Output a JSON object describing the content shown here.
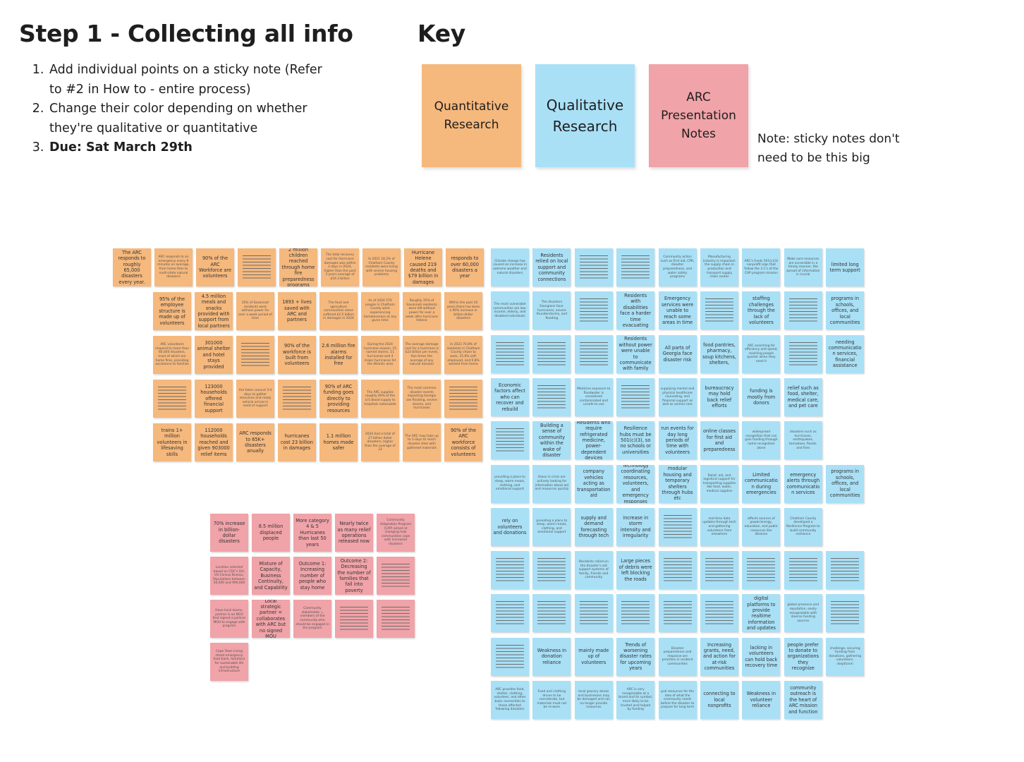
{
  "title": "Step 1 - Collecting all info",
  "key_title": "Key",
  "steps": [
    {
      "text": "Add individual points on a sticky note (Refer to #2 in How to - entire process)",
      "bold": false
    },
    {
      "text": "Change their color depending on whether they're qualitative or quantitative",
      "bold": false
    },
    {
      "text": "Due: Sat March 29th",
      "bold": true
    }
  ],
  "key": {
    "quantitative": "Quantitative Research",
    "qualitative": "Qualitative Research",
    "arc": "ARC Presentation Notes"
  },
  "note": "Note: sticky notes don't need to be this big",
  "colors": {
    "quantitative": "#f5b87d",
    "qualitative": "#a9e0f6",
    "arc": "#f0a3a8"
  },
  "quantitative_notes": [
    [
      "The ARC responds to roughly 65,000 disasters every year.",
      "ARC responds to an emergency every 8 minutes on average, from home fires to multi-state natural disasters",
      "90% of the ARC Workforce are volunteers",
      "",
      "2 million children reached through home fire preparedness programs",
      "The total recovery cost for Hurricane damages was within 3 days in 2024, higher than the past 3 years average of $19.3 billion",
      "In 2021 18.2% of Chatham County residents were living with severe housing problems",
      "Hurricane Helene caused 219 deaths and $79 billion in damages",
      "responds to over 60,000 disasters a year"
    ],
    [
      "95% of the employee structure is made up of volunteers",
      "4.5 million meals and snacks provided with support from local partners",
      "35% of Savannah residents were without power for over a week period of time",
      "1893 + lives saved with ARC and partners",
      "The food and agriculture communities alone suffered $2.5 billion in damages in 2024",
      "As of 2024 570 people in Chatham County were experiencing homelessness at any given time",
      "Roughly 35% of Savannah residents were left without power for over a week after hurricane Helene",
      "Within the past 10 years there has been a 90% increase in billion-dollar disasters"
    ],
    [
      "ARC volunteers respond to more than 60,000 disasters, most of which are home fires, providing assistance to families",
      "301000 animal shelter and hotel stays provided",
      "",
      "90% of the workforce is built from volunteers",
      "2.6 million fire alarms installed for free",
      "During the 2024 hurricane season, 15 named storms, 11 hurricanes and 4 major hurricanes hit the Atlantic area",
      "The average damage cost for a hurricane is $23 billion per event, five times the average of any natural disaster",
      "In 2023 70.8% of residents in Chatham County chose to work, 15.6% self-employed, and 0.8% worked from home"
    ],
    [
      "",
      "123000 households offered financial support",
      "Are taken around 3-4 days to gather resources and ready vehicle arrival in need of support",
      "",
      "90% of ARC funding goes directly to providing resources",
      "The ARC supplies roughly 40% of the U.S blood supply to hospitals nationwide",
      "The most common disaster events impacting Georgia are flooding, severe storms, and hurricanes",
      ""
    ],
    [
      "trains 1+ million volunteers in lifesaving skills",
      "112000 households reached and given 903000 relief items",
      "ARC responds to 65K+ disasters anually",
      "hurricanes cost 23 billion in damages",
      "1.1 million homes made safer",
      "2024 had a total of 27 billion dollar disasters, higher than the average of 23",
      "The ARC may take up to 3 days to reach disaster sites with gathered materials",
      "90% of the ARC workforce consists of volunteers"
    ]
  ],
  "qualitative_notes": [
    [
      "Climate change has caused an increase in extreme weather and natural disasters",
      "Residents relied on local support and community connections",
      "",
      "",
      "Community action such as first aid, CPR, disaster preparedness, and water safety programs",
      "Manufacturing industry is impacted: the supply chain in production and transport supply chain routes",
      "ARC's funds 501(c)(3) nonprofit orgs that follow the 3 C's of the CAP program mission",
      "Make sure resources are accessible in a timely manner, the spread of information is crucial",
      "limited long term support"
    ],
    [
      "The most vulnerable communities are low-income, elderly, and disabled individuals",
      "The disasters Georgians face: hurricanes, severe thunderstorms, and flooding",
      "",
      "Residents with disabilities face a harder time evacuating",
      "Emergency services were unable to reach some areas in time",
      "",
      "staffing challenges through the lack of volunteers",
      "",
      "programs in schools, offices, and local communities"
    ],
    [
      "",
      "",
      "",
      "Residents without power were unable to communicate with family",
      "All parts of Georgia face disaster risk",
      "food pantries, pharmacy, soup kitchens, shelters,",
      "ARC searching for efficiency and speed, reaching people quicker when they need it",
      "",
      "needing communication services, financial assistance"
    ],
    [
      "Economic factors affect who can recover and rebuild",
      "",
      "Medicine exposure to floodwater is considered contaminated and unsafe to use",
      "",
      "supplying mental and physical healthcare counseling, and financial support as well as animal care",
      "bureaucracy may hold back relief efforts",
      "funding is mostly from donors",
      "relief such as food, shelter, medical care, and pet care"
    ],
    [
      "",
      "Building a sense of community within the wake of disaster",
      "Residents who require refrigerated medicine, power-dependent devices",
      "Resilience hubs must be 501(c)(3), so no schools or universities",
      "run events for day long periods of time with volunteers",
      "online classes for first aid and preparedness",
      "widespread recognition that can gain funding through name recognition alone",
      "disasters such as hurricanes, earthquakes, tornadoes, floods, and fires"
    ],
    [
      "providing a place to sleep, warm meals, clothing, and emotional support",
      "those in crisis are actively looking for information about aid and resources quickly",
      "company vehicles acting as transportation aid",
      "Technology coordinating resources, volunteers, and emergency responses",
      "modular housing and temporary shelters through hubs etc",
      "Relief, aid, and logistical support for transporting supplies like food, water, medical supplies",
      "Limited communication during emergencies",
      "emergency alerts through communication services",
      "programs in schools, offices, and local communities"
    ],
    [
      "rely on volunteers and donations",
      "providing a place to sleep, warm meals, clothing, and emotional support",
      "supply and demand forecasting through tech",
      "increase in storm intensity and irregularity",
      "",
      "real-time data updates through tech and gathering volunteers from elsewhere",
      "affects sources of power/energy, education, and public resources like libraries",
      "Chatham County developed a Resilience Program to build community resilience"
    ],
    [
      "",
      "",
      "Residents relied on the disaster's aid support systems of family, friends and community",
      "Large pieces of debris were left blocking the roads",
      "",
      "",
      "",
      "",
      ""
    ],
    [
      "",
      "",
      "",
      "",
      "",
      "",
      "digital platforms to provide realtime information and updates",
      "global presence and reputation, easily recognizable with diverse funding sources",
      ""
    ],
    [
      "",
      "Weakness in donation reliance",
      "mainly made up of volunteers",
      "Trends of worsening disaster rates for upcoming years",
      "Disaster preparedness and response are priorities in resilient communities",
      "Increasing grants, need, and action for at-risk communities",
      "lacking in volunteers can hold back recovery time",
      "people prefer to donate to organizations they recognize",
      "challenge, securing funding from donations, gathering volunteers, skepticism"
    ],
    [
      "ARC provides food, shelter, clothing, volunteer, and other basic necessities to those affected following disasters",
      "Food and clothing drives to be considerate, but materials must not be re-worn",
      "local grocery stores and businesses may be damaged and can no longer provide resources",
      "ARC is very recognizable at a brand and its symbol, more likely to be trusted and helped by funding",
      "pull resources for the idea of what the community needs before the disaster to prepare for long term",
      "connecting to local nonprofits",
      "Weakness in volunteer reliance",
      "community outreach is the heart of ARC mission and function"
    ]
  ],
  "arc_notes": [
    [
      "70% increase in billion-dollar disasters",
      "8.5 million displaced people",
      "More category 4 & 5 Hurricanes than last 50 years",
      "Nearly twice as many relief operations released now",
      "Community Adaptation Program (CAP) aimed at changing how communities cope with increased disasters"
    ],
    [
      "Location selected based on CDC's SVI, US Census Bureau, Populations between 50,000 and 990,000",
      "Mixture of Capacity, Business Continuity, and Capability",
      "Outcome 1: Increasing number of people who stay home",
      "Outcome 2: Decreasing the number of families that fall into poverty",
      ""
    ],
    [
      "Have local teams, partner is an NGO that signed a partner MOU to engage with program",
      "Local strategic partner = collaborates with ARC but no signed MOU",
      "Community stakeholder = members of the community who should be engaged in the program",
      "",
      ""
    ],
    [
      "Cape Town Living street emergency food bank, Solutions for sustainable life and building infrastructure"
    ]
  ]
}
